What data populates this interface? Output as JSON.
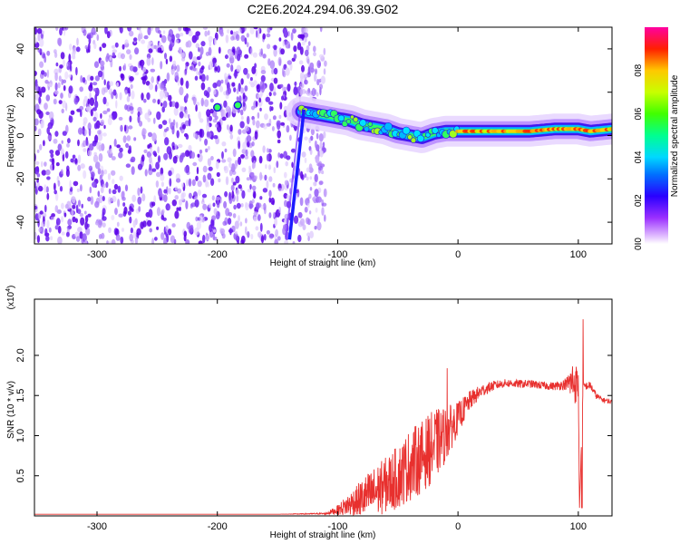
{
  "title": "C2E6.2024.294.06.39.G02",
  "chart_data": [
    {
      "type": "heatmap",
      "xlabel": "Height of straight line (km)",
      "ylabel": "Frequency (Hz)",
      "xlim": [
        -352,
        128
      ],
      "ylim": [
        -50,
        50
      ],
      "x_ticks": [
        -300,
        -200,
        -100,
        0,
        100
      ],
      "y_ticks": [
        -40,
        -20,
        0,
        20,
        40
      ],
      "colorbar": {
        "label": "Normalized spectral amplitude",
        "range": [
          0,
          1
        ],
        "ticks": [
          "0.0",
          "0.2",
          "0.4",
          "0.6",
          "0.8"
        ]
      },
      "ridge": {
        "x": [
          -130,
          -120,
          -110,
          -100,
          -90,
          -80,
          -70,
          -60,
          -50,
          -40,
          -30,
          -20,
          -10,
          0,
          20,
          40,
          60,
          80,
          100,
          110,
          128
        ],
        "y": [
          11,
          10,
          9,
          8,
          7,
          5,
          4,
          3,
          1,
          0,
          -1,
          1,
          2,
          2,
          2,
          2,
          2,
          3,
          3,
          2,
          3
        ]
      },
      "streak": {
        "x": [
          -140,
          -128
        ],
        "y": [
          -48,
          12
        ]
      },
      "noise_region_x": [
        -352,
        -110
      ],
      "isolated_points": [
        {
          "x": -200,
          "y": 13
        },
        {
          "x": -183,
          "y": 14
        }
      ]
    },
    {
      "type": "line",
      "xlabel": "Height of straight line (km)",
      "ylabel": "SNR (10 * v/v)",
      "y_multiplier": "(x10^4)",
      "y_multiplier_base": "(x10",
      "y_multiplier_exp": "4",
      "xlim": [
        -352,
        128
      ],
      "ylim": [
        0,
        2.7
      ],
      "x_ticks": [
        -300,
        -200,
        -100,
        0,
        100
      ],
      "y_ticks": [
        0.5,
        1.0,
        1.5,
        2.0
      ],
      "y_tick_labels": [
        "0.5",
        "1.0",
        "1.5",
        "2.0"
      ],
      "series": [
        {
          "color": "#e8302e",
          "x": [
            -352,
            -300,
            -250,
            -200,
            -150,
            -110,
            -100,
            -90,
            -80,
            -70,
            -60,
            -50,
            -40,
            -30,
            -20,
            -10,
            0,
            10,
            20,
            30,
            40,
            50,
            60,
            70,
            80,
            90,
            96,
            100,
            101,
            104,
            110,
            115,
            120,
            128
          ],
          "y": [
            0.02,
            0.02,
            0.02,
            0.02,
            0.02,
            0.03,
            0.08,
            0.16,
            0.24,
            0.32,
            0.42,
            0.52,
            0.68,
            0.78,
            0.92,
            1.05,
            1.24,
            1.45,
            1.57,
            1.63,
            1.66,
            1.65,
            1.65,
            1.63,
            1.62,
            1.65,
            1.7,
            1.65,
            0.1,
            1.62,
            1.63,
            1.5,
            1.45,
            1.42
          ],
          "noise_amplitude": [
            0,
            0,
            0,
            0,
            0,
            0.01,
            0.06,
            0.15,
            0.25,
            0.32,
            0.35,
            0.4,
            0.45,
            0.45,
            0.45,
            0.35,
            0.2,
            0.12,
            0.08,
            0.06,
            0.05,
            0.05,
            0.05,
            0.05,
            0.05,
            0.07,
            0.3,
            0.2,
            0,
            0.05,
            0.05,
            0.04,
            0.03,
            0.03
          ]
        }
      ],
      "peaks": [
        {
          "x": -9,
          "y": 1.84
        },
        {
          "x": 104,
          "y": 2.45
        },
        {
          "x": 103,
          "y": 0.1
        }
      ]
    }
  ]
}
